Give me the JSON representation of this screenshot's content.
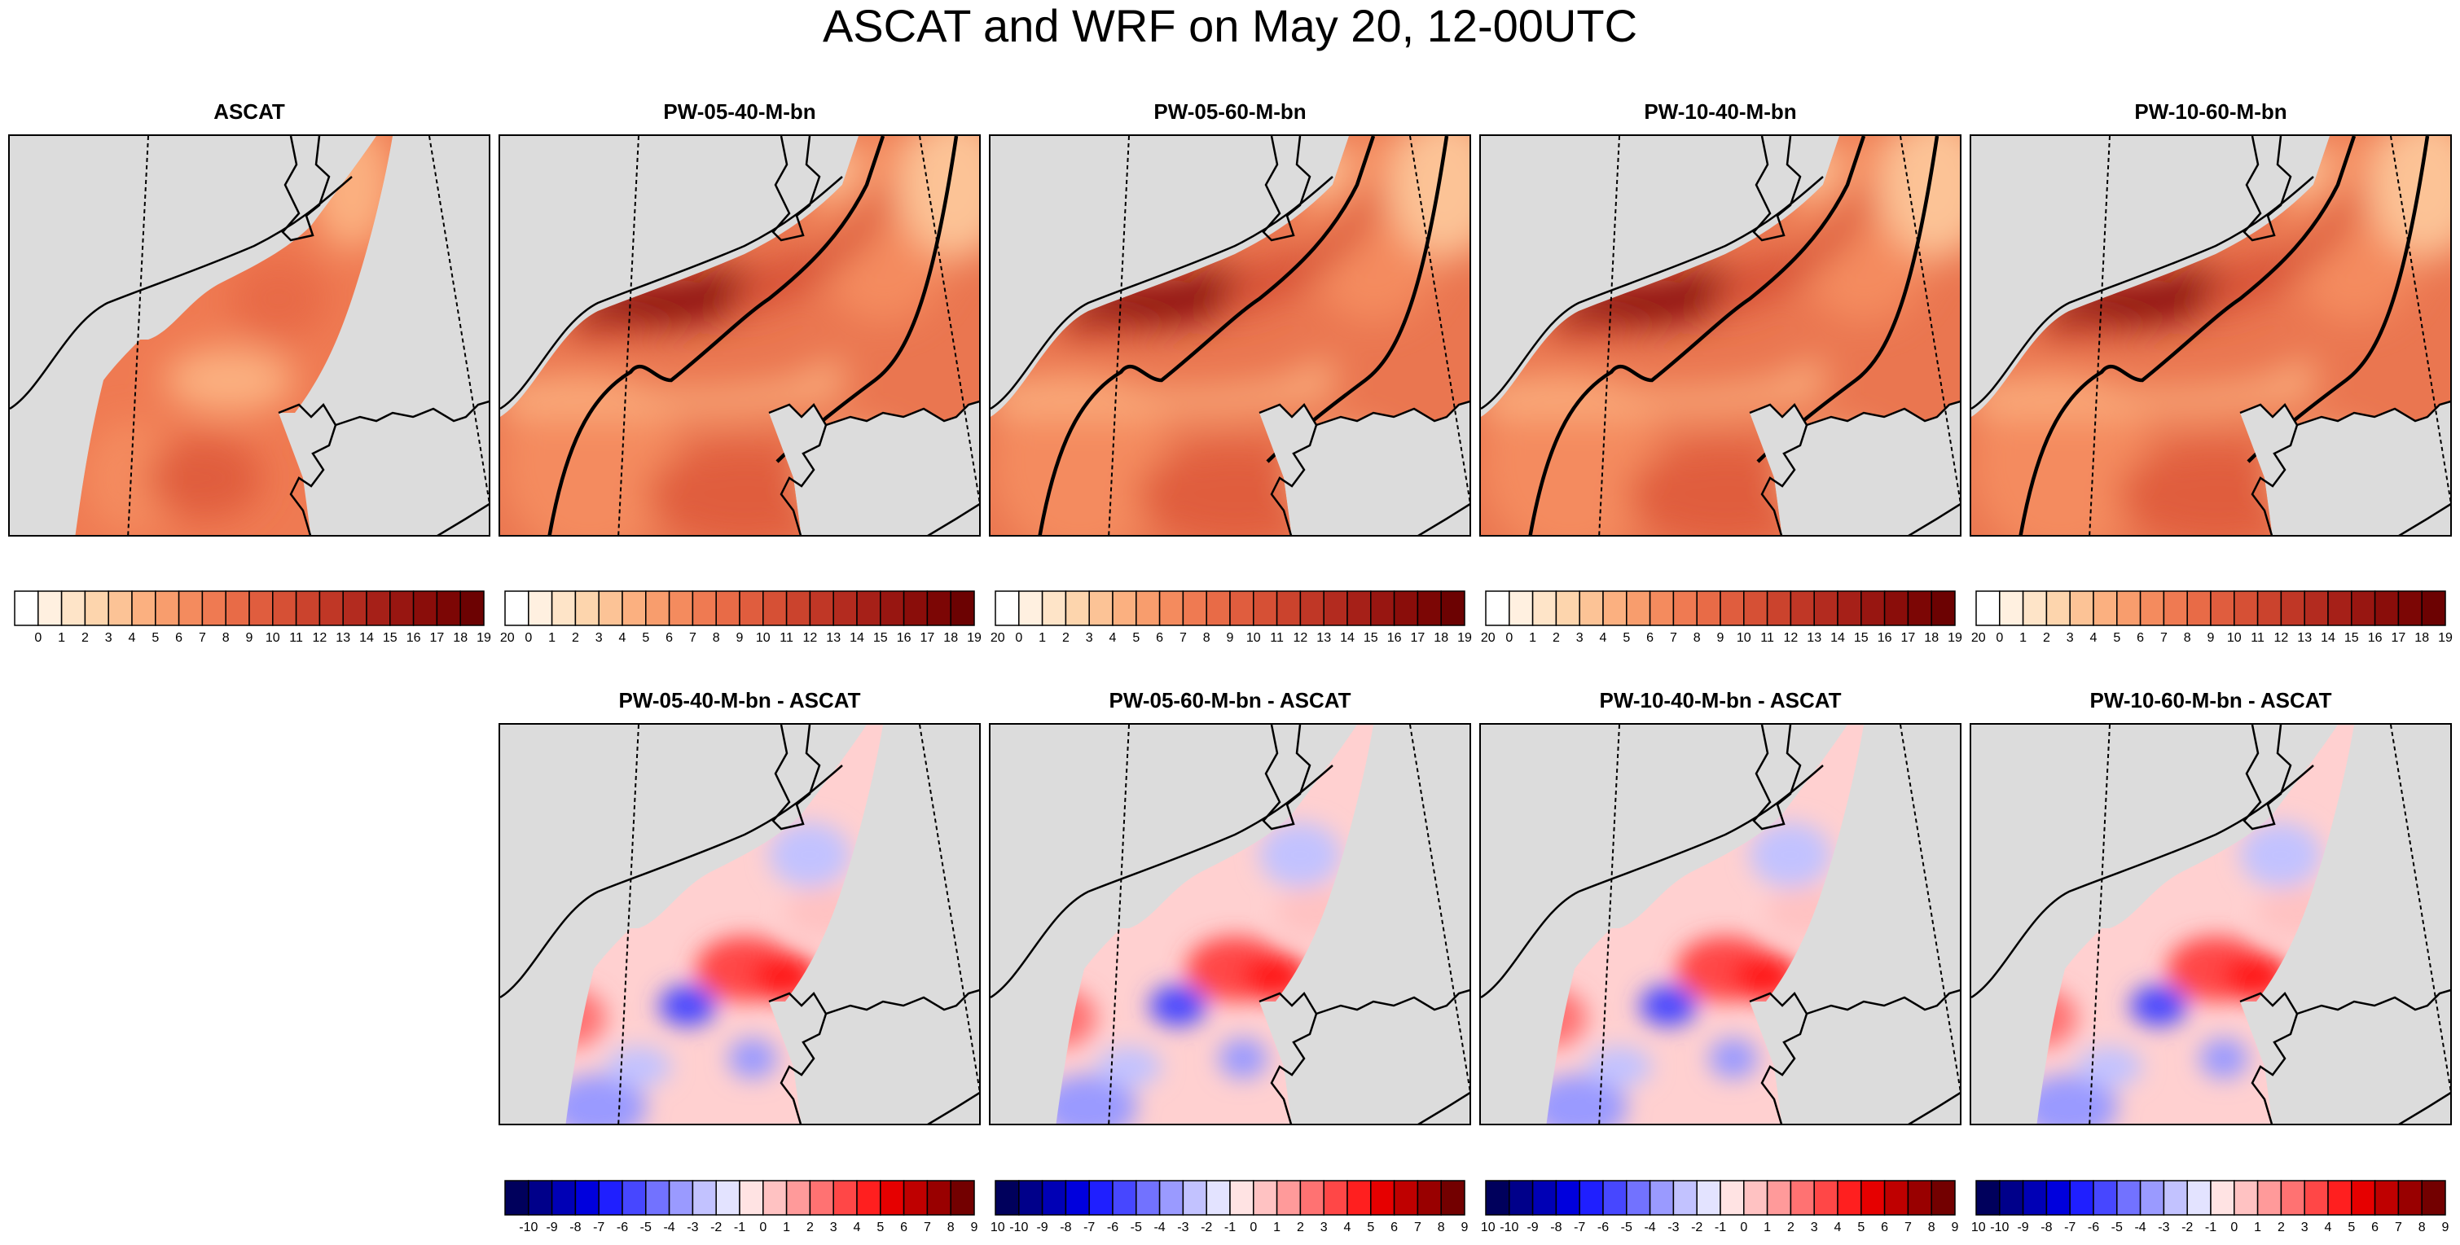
{
  "title": "ASCAT and WRF on May 20, 12-00UTC",
  "top_row": [
    {
      "title": "ASCAT",
      "kind": "ascat"
    },
    {
      "title": "PW-05-40-M-bn",
      "kind": "wrf"
    },
    {
      "title": "PW-05-60-M-bn",
      "kind": "wrf"
    },
    {
      "title": "PW-10-40-M-bn",
      "kind": "wrf"
    },
    {
      "title": "PW-10-60-M-bn",
      "kind": "wrf"
    }
  ],
  "bottom_row": [
    {
      "title": "PW-05-40-M-bn - ASCAT"
    },
    {
      "title": "PW-05-60-M-bn - ASCAT"
    },
    {
      "title": "PW-10-40-M-bn - ASCAT"
    },
    {
      "title": "PW-10-60-M-bn - ASCAT"
    }
  ],
  "chart_data": {
    "type": "heatmap",
    "colorbar_speed": {
      "labels": [
        "0",
        "1",
        "2",
        "3",
        "4",
        "5",
        "6",
        "7",
        "8",
        "9",
        "10",
        "11",
        "12",
        "13",
        "14",
        "15",
        "16",
        "17",
        "18",
        "19",
        "20"
      ],
      "colors": [
        "#ffffff",
        "#fff0e0",
        "#fee4c8",
        "#fdd5ad",
        "#fcc396",
        "#fbb080",
        "#f89d6d",
        "#f48b5e",
        "#ef7a52",
        "#e86b47",
        "#e05d3e",
        "#d65035",
        "#cb432d",
        "#c03726",
        "#b32b1f",
        "#a62018",
        "#981611",
        "#8a0d0a",
        "#7c0605",
        "#6c0202"
      ]
    },
    "colorbar_diff": {
      "labels": [
        "-10",
        "-9",
        "-8",
        "-7",
        "-6",
        "-5",
        "-4",
        "-3",
        "-2",
        "-1",
        "0",
        "1",
        "2",
        "3",
        "4",
        "5",
        "6",
        "7",
        "8",
        "9",
        "10"
      ],
      "colors": [
        "#00005c",
        "#00008a",
        "#0000b5",
        "#0000dd",
        "#1f1fff",
        "#4747ff",
        "#7272ff",
        "#9a9aff",
        "#c2c2ff",
        "#e3e3ff",
        "#ffe3e3",
        "#ffc2c2",
        "#ff9a9a",
        "#ff7272",
        "#ff4747",
        "#ff1f1f",
        "#e60000",
        "#bf0000",
        "#990000",
        "#730000"
      ]
    }
  }
}
